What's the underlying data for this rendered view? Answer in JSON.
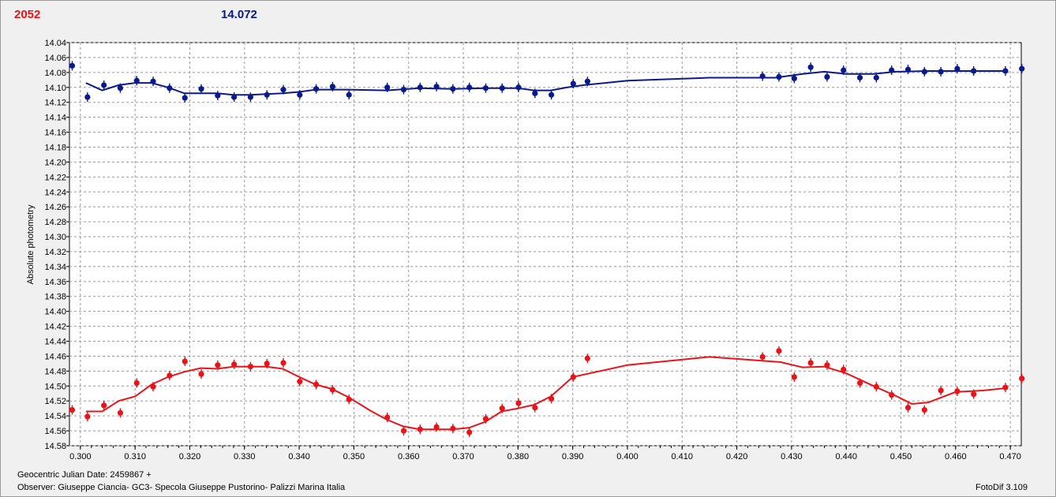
{
  "header": {
    "left_value": "2052",
    "left_color": "#e8141a",
    "right_value": "14.072",
    "right_color": "#0b1a8a"
  },
  "footer": {
    "date_line": "Geocentric Julian Date: 2459867 +",
    "observer_line": "Observer: Giuseppe Ciancia- GC3- Specola Giuseppe Pustorino- Palizzi Marina Italia",
    "software": "FotoDif 3.109"
  },
  "chart_data": {
    "type": "scatter",
    "ylabel": "Absolute photometry",
    "xlabel": "",
    "xlim": [
      0.298,
      0.472
    ],
    "ylim": [
      14.04,
      14.58
    ],
    "y_inverted": true,
    "grid": true,
    "x_ticks": [
      "0.300",
      "0.310",
      "0.320",
      "0.330",
      "0.340",
      "0.350",
      "0.360",
      "0.370",
      "0.380",
      "0.390",
      "0.400",
      "0.410",
      "0.420",
      "0.430",
      "0.440",
      "0.450",
      "0.460",
      "0.470"
    ],
    "y_ticks": [
      "14.04",
      "14.06",
      "14.08",
      "14.10",
      "14.12",
      "14.14",
      "14.16",
      "14.18",
      "14.20",
      "14.22",
      "14.24",
      "14.26",
      "14.28",
      "14.30",
      "14.32",
      "14.34",
      "14.36",
      "14.38",
      "14.40",
      "14.42",
      "14.44",
      "14.46",
      "14.48",
      "14.50",
      "14.52",
      "14.54",
      "14.56",
      "14.58"
    ],
    "series": [
      {
        "color": "#0b1a8a",
        "points": [
          [
            0.2985,
            14.071
          ],
          [
            0.3013,
            14.113
          ],
          [
            0.3043,
            14.097
          ],
          [
            0.3073,
            14.101
          ],
          [
            0.3103,
            14.091
          ],
          [
            0.3133,
            14.092
          ],
          [
            0.3163,
            14.101
          ],
          [
            0.3191,
            14.114
          ],
          [
            0.3221,
            14.102
          ],
          [
            0.3251,
            14.111
          ],
          [
            0.3281,
            14.113
          ],
          [
            0.3311,
            14.113
          ],
          [
            0.3341,
            14.11
          ],
          [
            0.3371,
            14.103
          ],
          [
            0.3401,
            14.11
          ],
          [
            0.3431,
            14.102
          ],
          [
            0.3461,
            14.099
          ],
          [
            0.3491,
            14.11
          ],
          [
            0.3561,
            14.1
          ],
          [
            0.3591,
            14.103
          ],
          [
            0.3621,
            14.1
          ],
          [
            0.3651,
            14.099
          ],
          [
            0.3681,
            14.102
          ],
          [
            0.3711,
            14.1
          ],
          [
            0.3741,
            14.101
          ],
          [
            0.3771,
            14.101
          ],
          [
            0.3801,
            14.1
          ],
          [
            0.3831,
            14.108
          ],
          [
            0.3861,
            14.11
          ],
          [
            0.3901,
            14.095
          ],
          [
            0.3927,
            14.092
          ],
          [
            0.4247,
            14.085
          ],
          [
            0.4277,
            14.086
          ],
          [
            0.4305,
            14.088
          ],
          [
            0.4335,
            14.073
          ],
          [
            0.4365,
            14.086
          ],
          [
            0.4395,
            14.077
          ],
          [
            0.4425,
            14.087
          ],
          [
            0.4455,
            14.087
          ],
          [
            0.4483,
            14.077
          ],
          [
            0.4513,
            14.076
          ],
          [
            0.4543,
            14.079
          ],
          [
            0.4573,
            14.079
          ],
          [
            0.4603,
            14.075
          ],
          [
            0.4633,
            14.078
          ],
          [
            0.4691,
            14.078
          ],
          [
            0.4721,
            14.075
          ]
        ],
        "trend": [
          [
            0.301,
            14.094
          ],
          [
            0.304,
            14.104
          ],
          [
            0.307,
            14.097
          ],
          [
            0.31,
            14.094
          ],
          [
            0.313,
            14.094
          ],
          [
            0.316,
            14.1
          ],
          [
            0.319,
            14.108
          ],
          [
            0.322,
            14.108
          ],
          [
            0.325,
            14.108
          ],
          [
            0.328,
            14.11
          ],
          [
            0.331,
            14.11
          ],
          [
            0.334,
            14.109
          ],
          [
            0.337,
            14.108
          ],
          [
            0.34,
            14.106
          ],
          [
            0.343,
            14.103
          ],
          [
            0.349,
            14.103
          ],
          [
            0.356,
            14.104
          ],
          [
            0.362,
            14.101
          ],
          [
            0.368,
            14.102
          ],
          [
            0.374,
            14.101
          ],
          [
            0.38,
            14.101
          ],
          [
            0.383,
            14.104
          ],
          [
            0.386,
            14.104
          ],
          [
            0.389,
            14.1
          ],
          [
            0.392,
            14.097
          ],
          [
            0.4,
            14.091
          ],
          [
            0.415,
            14.087
          ],
          [
            0.427,
            14.087
          ],
          [
            0.432,
            14.082
          ],
          [
            0.436,
            14.079
          ],
          [
            0.44,
            14.082
          ],
          [
            0.445,
            14.082
          ],
          [
            0.449,
            14.079
          ],
          [
            0.455,
            14.078
          ],
          [
            0.461,
            14.078
          ],
          [
            0.469,
            14.078
          ]
        ]
      },
      {
        "color": "#e8141a",
        "points": [
          [
            0.2985,
            14.532
          ],
          [
            0.3013,
            14.541
          ],
          [
            0.3043,
            14.526
          ],
          [
            0.3073,
            14.536
          ],
          [
            0.3103,
            14.496
          ],
          [
            0.3133,
            14.501
          ],
          [
            0.3163,
            14.486
          ],
          [
            0.3191,
            14.467
          ],
          [
            0.3221,
            14.484
          ],
          [
            0.3251,
            14.472
          ],
          [
            0.3281,
            14.471
          ],
          [
            0.3311,
            14.474
          ],
          [
            0.3341,
            14.47
          ],
          [
            0.3371,
            14.469
          ],
          [
            0.3401,
            14.494
          ],
          [
            0.3431,
            14.498
          ],
          [
            0.3461,
            14.505
          ],
          [
            0.3491,
            14.518
          ],
          [
            0.3561,
            14.542
          ],
          [
            0.3591,
            14.56
          ],
          [
            0.3621,
            14.558
          ],
          [
            0.3651,
            14.555
          ],
          [
            0.3681,
            14.557
          ],
          [
            0.3711,
            14.562
          ],
          [
            0.3741,
            14.544
          ],
          [
            0.3771,
            14.53
          ],
          [
            0.3801,
            14.523
          ],
          [
            0.3831,
            14.529
          ],
          [
            0.3861,
            14.517
          ],
          [
            0.3901,
            14.488
          ],
          [
            0.3927,
            14.463
          ],
          [
            0.4247,
            14.461
          ],
          [
            0.4277,
            14.453
          ],
          [
            0.4305,
            14.488
          ],
          [
            0.4335,
            14.469
          ],
          [
            0.4365,
            14.472
          ],
          [
            0.4395,
            14.478
          ],
          [
            0.4425,
            14.496
          ],
          [
            0.4455,
            14.501
          ],
          [
            0.4483,
            14.512
          ],
          [
            0.4513,
            14.529
          ],
          [
            0.4543,
            14.532
          ],
          [
            0.4573,
            14.506
          ],
          [
            0.4603,
            14.507
          ],
          [
            0.4633,
            14.511
          ],
          [
            0.4691,
            14.502
          ],
          [
            0.4721,
            14.49
          ]
        ],
        "trend": [
          [
            0.301,
            14.534
          ],
          [
            0.304,
            14.534
          ],
          [
            0.307,
            14.52
          ],
          [
            0.31,
            14.514
          ],
          [
            0.313,
            14.498
          ],
          [
            0.316,
            14.488
          ],
          [
            0.319,
            14.481
          ],
          [
            0.322,
            14.476
          ],
          [
            0.325,
            14.477
          ],
          [
            0.328,
            14.474
          ],
          [
            0.331,
            14.474
          ],
          [
            0.334,
            14.474
          ],
          [
            0.337,
            14.477
          ],
          [
            0.34,
            14.488
          ],
          [
            0.343,
            14.498
          ],
          [
            0.346,
            14.504
          ],
          [
            0.349,
            14.515
          ],
          [
            0.353,
            14.533
          ],
          [
            0.356,
            14.545
          ],
          [
            0.359,
            14.554
          ],
          [
            0.362,
            14.558
          ],
          [
            0.365,
            14.558
          ],
          [
            0.368,
            14.558
          ],
          [
            0.371,
            14.556
          ],
          [
            0.374,
            14.548
          ],
          [
            0.377,
            14.534
          ],
          [
            0.38,
            14.53
          ],
          [
            0.383,
            14.525
          ],
          [
            0.386,
            14.514
          ],
          [
            0.39,
            14.488
          ],
          [
            0.4,
            14.472
          ],
          [
            0.415,
            14.461
          ],
          [
            0.428,
            14.468
          ],
          [
            0.432,
            14.475
          ],
          [
            0.436,
            14.474
          ],
          [
            0.44,
            14.483
          ],
          [
            0.445,
            14.5
          ],
          [
            0.449,
            14.513
          ],
          [
            0.452,
            14.524
          ],
          [
            0.455,
            14.522
          ],
          [
            0.46,
            14.508
          ],
          [
            0.465,
            14.506
          ],
          [
            0.469,
            14.503
          ]
        ]
      }
    ]
  }
}
